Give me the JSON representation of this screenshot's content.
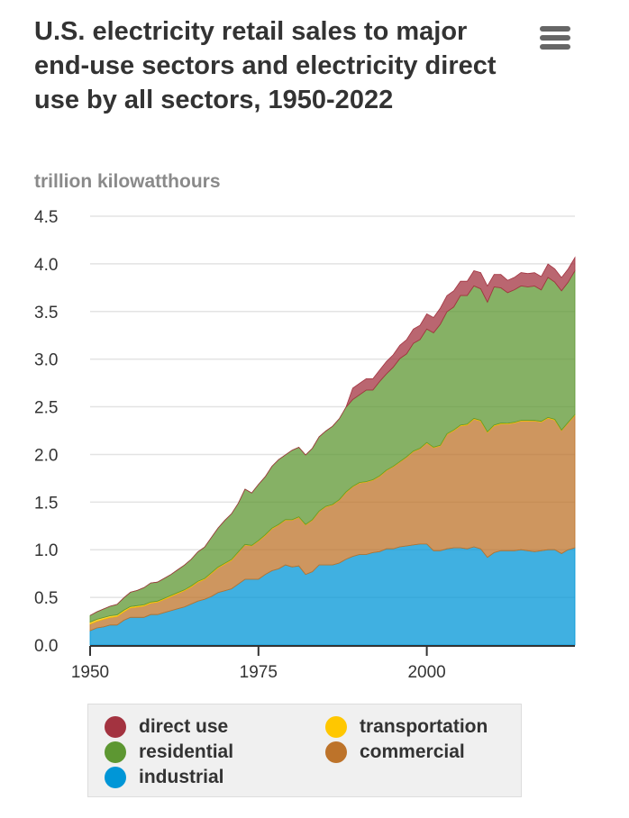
{
  "title": "U.S. electricity retail sales to major end-use sectors and electricity direct use by all sectors, 1950-2022",
  "menu_icon": "hamburger-menu-icon",
  "chart_data": {
    "type": "area",
    "stacked": true,
    "title": "U.S. electricity retail sales to major end-use sectors and electricity direct use by all sectors, 1950-2022",
    "ylabel": "trillion kilowatthours",
    "xlabel": "",
    "ylim": [
      0,
      4.5
    ],
    "xlim": [
      1950,
      2022
    ],
    "yticks": [
      "0.0",
      "0.5",
      "1.0",
      "1.5",
      "2.0",
      "2.5",
      "3.0",
      "3.5",
      "4.0",
      "4.5"
    ],
    "xticks": [
      "1950",
      "1975",
      "2000"
    ],
    "grid": true,
    "legend_position": "bottom",
    "x": [
      1950,
      1951,
      1952,
      1953,
      1954,
      1955,
      1956,
      1957,
      1958,
      1959,
      1960,
      1961,
      1962,
      1963,
      1964,
      1965,
      1966,
      1967,
      1968,
      1969,
      1970,
      1971,
      1972,
      1973,
      1974,
      1975,
      1976,
      1977,
      1978,
      1979,
      1980,
      1981,
      1982,
      1983,
      1984,
      1985,
      1986,
      1987,
      1988,
      1989,
      1990,
      1991,
      1992,
      1993,
      1994,
      1995,
      1996,
      1997,
      1998,
      1999,
      2000,
      2001,
      2002,
      2003,
      2004,
      2005,
      2006,
      2007,
      2008,
      2009,
      2010,
      2011,
      2012,
      2013,
      2014,
      2015,
      2016,
      2017,
      2018,
      2019,
      2020,
      2021,
      2022
    ],
    "series": [
      {
        "name": "industrial",
        "color": "#0096d7",
        "values": [
          0.15,
          0.18,
          0.19,
          0.21,
          0.21,
          0.26,
          0.29,
          0.29,
          0.29,
          0.32,
          0.32,
          0.34,
          0.36,
          0.38,
          0.4,
          0.43,
          0.46,
          0.48,
          0.51,
          0.55,
          0.57,
          0.59,
          0.64,
          0.69,
          0.69,
          0.69,
          0.74,
          0.78,
          0.8,
          0.84,
          0.82,
          0.83,
          0.74,
          0.77,
          0.84,
          0.84,
          0.84,
          0.86,
          0.9,
          0.93,
          0.95,
          0.95,
          0.97,
          0.98,
          1.01,
          1.01,
          1.03,
          1.04,
          1.05,
          1.06,
          1.06,
          0.99,
          0.99,
          1.01,
          1.02,
          1.02,
          1.01,
          1.03,
          1.01,
          0.92,
          0.97,
          0.99,
          0.99,
          0.99,
          1.0,
          0.99,
          0.98,
          0.99,
          1.0,
          1.0,
          0.96,
          1.0,
          1.02
        ]
      },
      {
        "name": "commercial",
        "color": "#bd732a",
        "values": [
          0.07,
          0.07,
          0.08,
          0.08,
          0.09,
          0.09,
          0.1,
          0.11,
          0.12,
          0.12,
          0.13,
          0.14,
          0.15,
          0.16,
          0.17,
          0.18,
          0.2,
          0.21,
          0.24,
          0.26,
          0.28,
          0.3,
          0.33,
          0.36,
          0.35,
          0.4,
          0.41,
          0.44,
          0.46,
          0.47,
          0.49,
          0.51,
          0.52,
          0.54,
          0.56,
          0.61,
          0.63,
          0.66,
          0.7,
          0.73,
          0.75,
          0.76,
          0.76,
          0.79,
          0.82,
          0.86,
          0.89,
          0.93,
          0.98,
          1.0,
          1.06,
          1.08,
          1.1,
          1.2,
          1.23,
          1.28,
          1.3,
          1.34,
          1.34,
          1.31,
          1.33,
          1.33,
          1.33,
          1.34,
          1.35,
          1.36,
          1.37,
          1.35,
          1.38,
          1.36,
          1.29,
          1.33,
          1.39
        ]
      },
      {
        "name": "transportation",
        "color": "#ffc700",
        "values": [
          0.02,
          0.019,
          0.018,
          0.017,
          0.016,
          0.015,
          0.014,
          0.013,
          0.012,
          0.011,
          0.01,
          0.01,
          0.01,
          0.009,
          0.009,
          0.009,
          0.008,
          0.008,
          0.008,
          0.008,
          0.007,
          0.007,
          0.007,
          0.006,
          0.006,
          0.006,
          0.006,
          0.006,
          0.006,
          0.006,
          0.005,
          0.005,
          0.005,
          0.005,
          0.005,
          0.005,
          0.005,
          0.005,
          0.005,
          0.005,
          0.005,
          0.005,
          0.005,
          0.005,
          0.005,
          0.005,
          0.005,
          0.005,
          0.005,
          0.005,
          0.005,
          0.006,
          0.006,
          0.007,
          0.007,
          0.008,
          0.007,
          0.008,
          0.008,
          0.008,
          0.008,
          0.008,
          0.007,
          0.008,
          0.008,
          0.008,
          0.007,
          0.007,
          0.008,
          0.008,
          0.006,
          0.007,
          0.007
        ]
      },
      {
        "name": "residential",
        "color": "#5d9732",
        "values": [
          0.07,
          0.08,
          0.09,
          0.1,
          0.11,
          0.13,
          0.15,
          0.16,
          0.18,
          0.2,
          0.2,
          0.21,
          0.22,
          0.24,
          0.26,
          0.28,
          0.31,
          0.33,
          0.37,
          0.41,
          0.45,
          0.48,
          0.51,
          0.58,
          0.55,
          0.59,
          0.61,
          0.65,
          0.68,
          0.68,
          0.73,
          0.73,
          0.73,
          0.75,
          0.78,
          0.79,
          0.82,
          0.85,
          0.89,
          0.91,
          0.92,
          0.96,
          0.94,
          0.99,
          1.01,
          1.04,
          1.08,
          1.08,
          1.13,
          1.14,
          1.19,
          1.2,
          1.27,
          1.28,
          1.29,
          1.36,
          1.35,
          1.39,
          1.38,
          1.36,
          1.45,
          1.42,
          1.37,
          1.39,
          1.41,
          1.4,
          1.41,
          1.38,
          1.47,
          1.44,
          1.46,
          1.47,
          1.51
        ]
      },
      {
        "name": "direct use",
        "color": "#a33340",
        "values": [
          0,
          0,
          0,
          0,
          0,
          0,
          0,
          0,
          0,
          0,
          0,
          0,
          0,
          0,
          0,
          0,
          0,
          0,
          0,
          0,
          0,
          0,
          0,
          0,
          0,
          0,
          0,
          0,
          0,
          0,
          0,
          0,
          0,
          0,
          0,
          0,
          0,
          0,
          0,
          0.12,
          0.12,
          0.12,
          0.12,
          0.12,
          0.13,
          0.13,
          0.14,
          0.15,
          0.15,
          0.15,
          0.16,
          0.16,
          0.17,
          0.17,
          0.17,
          0.15,
          0.15,
          0.16,
          0.17,
          0.17,
          0.13,
          0.14,
          0.13,
          0.13,
          0.14,
          0.14,
          0.14,
          0.14,
          0.14,
          0.14,
          0.14,
          0.14,
          0.14
        ]
      }
    ]
  },
  "legend": [
    {
      "label": "direct use",
      "color": "#a33340"
    },
    {
      "label": "transportation",
      "color": "#ffc700"
    },
    {
      "label": "residential",
      "color": "#5d9732"
    },
    {
      "label": "commercial",
      "color": "#bd732a"
    },
    {
      "label": "industrial",
      "color": "#0096d7"
    }
  ]
}
